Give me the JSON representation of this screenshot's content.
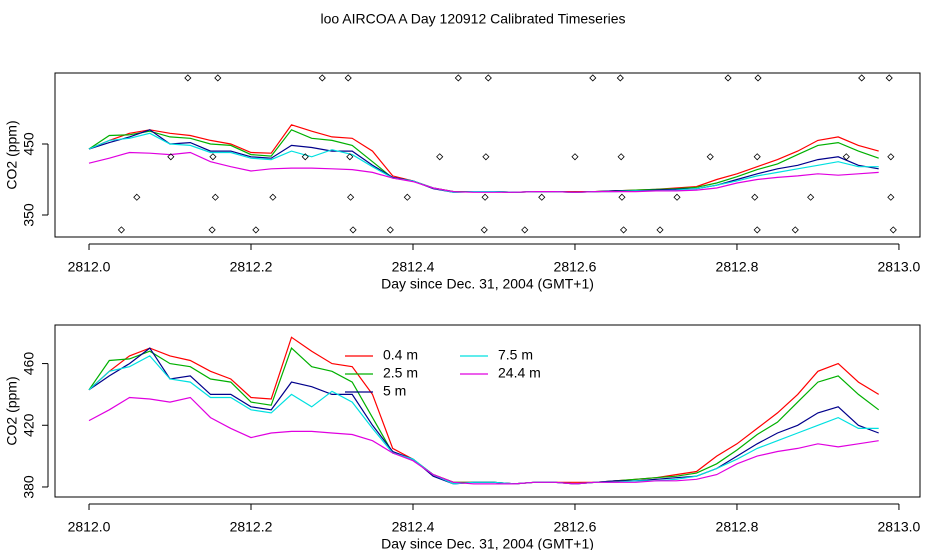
{
  "chart_data": [
    {
      "type": "line",
      "title": "loo AIRCOA A  Day 120912  Calibrated Timeseries",
      "xlabel": "Day since Dec. 31, 2004 (GMT+1)",
      "ylabel": "CO2 (ppm)",
      "xlim": [
        2811.958,
        2813.026
      ],
      "ylim": [
        319,
        550
      ],
      "xticks": [
        {
          "value": 2812,
          "label": "2812.0"
        },
        2812.2,
        2812.4,
        2812.6,
        2812.8,
        {
          "value": 2813,
          "label": "2813.0"
        }
      ],
      "yticks": [
        350,
        450
      ],
      "x": [
        2812.0,
        2812.025,
        2812.05,
        2812.075,
        2812.1,
        2812.125,
        2812.15,
        2812.175,
        2812.2,
        2812.225,
        2812.25,
        2812.275,
        2812.3,
        2812.325,
        2812.35,
        2812.375,
        2812.4,
        2812.425,
        2812.45,
        2812.475,
        2812.5,
        2812.525,
        2812.55,
        2812.575,
        2812.6,
        2812.625,
        2812.65,
        2812.675,
        2812.7,
        2812.725,
        2812.75,
        2812.775,
        2812.8,
        2812.825,
        2812.85,
        2812.875,
        2812.9,
        2812.925,
        2812.95,
        2812.975
      ],
      "series": [
        {
          "color": "#ff0000",
          "values": [
            443,
            455,
            465,
            470,
            465,
            462,
            455,
            450,
            438,
            437,
            477,
            468,
            460,
            458,
            440,
            405,
            398,
            388,
            383,
            383,
            383,
            382,
            383,
            383,
            383,
            383,
            384,
            385,
            386,
            388,
            390,
            400,
            408,
            418,
            428,
            440,
            455,
            460,
            448,
            440
          ]
        },
        {
          "color": "#00b000",
          "values": [
            443,
            462,
            463,
            468,
            460,
            458,
            450,
            448,
            435,
            433,
            470,
            458,
            455,
            448,
            425,
            402,
            398,
            388,
            383,
            383,
            383,
            382,
            383,
            383,
            382,
            383,
            384,
            385,
            386,
            387,
            389,
            395,
            404,
            414,
            422,
            435,
            448,
            452,
            440,
            430
          ]
        },
        {
          "color": "#00008b",
          "values": [
            443,
            452,
            460,
            470,
            450,
            452,
            440,
            440,
            432,
            430,
            448,
            445,
            440,
            440,
            420,
            403,
            398,
            387,
            382,
            383,
            383,
            382,
            383,
            383,
            382,
            383,
            384,
            384,
            385,
            386,
            387,
            392,
            400,
            408,
            415,
            420,
            428,
            432,
            420,
            415
          ]
        },
        {
          "color": "#00e0e0",
          "values": [
            443,
            455,
            458,
            465,
            450,
            448,
            438,
            438,
            430,
            428,
            440,
            432,
            442,
            435,
            418,
            402,
            398,
            388,
            382,
            383,
            383,
            382,
            383,
            383,
            382,
            383,
            383,
            384,
            384,
            385,
            387,
            392,
            398,
            405,
            410,
            415,
            420,
            425,
            418,
            418
          ]
        },
        {
          "color": "#e000e0",
          "values": [
            423,
            430,
            438,
            437,
            435,
            438,
            425,
            418,
            412,
            415,
            416,
            416,
            415,
            414,
            410,
            402,
            397,
            388,
            383,
            382,
            382,
            382,
            383,
            383,
            382,
            383,
            383,
            383,
            384,
            384,
            385,
            388,
            395,
            400,
            403,
            405,
            408,
            406,
            408,
            410
          ]
        }
      ],
      "points": {
        "x": [
          2812.122,
          2812.159,
          2812.288,
          2812.32,
          2812.456,
          2812.493,
          2812.622,
          2812.656,
          2812.789,
          2812.826,
          2812.954,
          2812.988,
          2812.101,
          2812.153,
          2812.267,
          2812.322,
          2812.433,
          2812.49,
          2812.6,
          2812.657,
          2812.767,
          2812.825,
          2812.935,
          2812.99,
          2812.059,
          2812.156,
          2812.227,
          2812.323,
          2812.393,
          2812.489,
          2812.559,
          2812.658,
          2812.726,
          2812.822,
          2812.891,
          2812.99,
          2812.04,
          2812.152,
          2812.206,
          2812.326,
          2812.372,
          2812.488,
          2812.538,
          2812.66,
          2812.705,
          2812.825,
          2812.872,
          2812.993
        ],
        "y": [
          543,
          543,
          543,
          543,
          543,
          543,
          543,
          543,
          543,
          543,
          543,
          543,
          432,
          432,
          432,
          432,
          432,
          432,
          432,
          432,
          432,
          432,
          432,
          432,
          375,
          375,
          375,
          375,
          375,
          375,
          375,
          375,
          375,
          375,
          375,
          375,
          329,
          329,
          329,
          329,
          329,
          329,
          329,
          329,
          329,
          329,
          329,
          329
        ]
      }
    },
    {
      "type": "line",
      "xlabel": "Day since Dec. 31, 2004 (GMT+1)",
      "ylabel": "CO2 (ppm)",
      "xlim": [
        2811.958,
        2813.026
      ],
      "ylim": [
        373.5,
        485
      ],
      "xticks": [
        {
          "value": 2812,
          "label": "2812.0"
        },
        2812.2,
        2812.4,
        2812.6,
        2812.8,
        {
          "value": 2813,
          "label": "2813.0"
        }
      ],
      "yticks": [
        380,
        420,
        460
      ],
      "legend": "top",
      "x": [
        2812.0,
        2812.025,
        2812.05,
        2812.075,
        2812.1,
        2812.125,
        2812.15,
        2812.175,
        2812.2,
        2812.225,
        2812.25,
        2812.275,
        2812.3,
        2812.325,
        2812.35,
        2812.375,
        2812.4,
        2812.425,
        2812.45,
        2812.475,
        2812.5,
        2812.525,
        2812.55,
        2812.575,
        2812.6,
        2812.625,
        2812.65,
        2812.675,
        2812.7,
        2812.725,
        2812.75,
        2812.775,
        2812.8,
        2812.825,
        2812.85,
        2812.875,
        2812.9,
        2812.925,
        2812.95,
        2812.975
      ],
      "series": [
        {
          "name": "0.4 m",
          "color": "#ff0000",
          "values": [
            443,
            455,
            465,
            470,
            465,
            462,
            455,
            450,
            438,
            437,
            477,
            468,
            460,
            458,
            440,
            405,
            398,
            388,
            383,
            383,
            383,
            382,
            383,
            383,
            383,
            383,
            384,
            385,
            386,
            388,
            390,
            400,
            408,
            418,
            428,
            440,
            455,
            460,
            448,
            440
          ]
        },
        {
          "name": "2.5 m",
          "color": "#00b000",
          "values": [
            443,
            462,
            463,
            468,
            460,
            458,
            450,
            448,
            435,
            433,
            470,
            458,
            455,
            448,
            425,
            402,
            398,
            388,
            383,
            383,
            383,
            382,
            383,
            383,
            382,
            383,
            384,
            385,
            386,
            387,
            389,
            395,
            404,
            414,
            422,
            435,
            448,
            452,
            440,
            430
          ]
        },
        {
          "name": "5 m",
          "color": "#00008b",
          "values": [
            443,
            452,
            460,
            470,
            450,
            452,
            440,
            440,
            432,
            430,
            448,
            445,
            440,
            440,
            420,
            403,
            398,
            387,
            382,
            383,
            383,
            382,
            383,
            383,
            382,
            383,
            384,
            384,
            385,
            386,
            387,
            392,
            400,
            408,
            415,
            420,
            428,
            432,
            420,
            415
          ]
        },
        {
          "name": "7.5 m",
          "color": "#00e0e0",
          "values": [
            443,
            455,
            458,
            465,
            450,
            448,
            438,
            438,
            430,
            428,
            440,
            432,
            442,
            435,
            418,
            402,
            398,
            388,
            382,
            383,
            383,
            382,
            383,
            383,
            382,
            383,
            383,
            384,
            384,
            385,
            387,
            392,
            398,
            405,
            410,
            415,
            420,
            425,
            418,
            418
          ]
        },
        {
          "name": "24.4 m",
          "color": "#e000e0",
          "values": [
            423,
            430,
            438,
            437,
            435,
            438,
            425,
            418,
            412,
            415,
            416,
            416,
            415,
            414,
            410,
            402,
            397,
            388,
            383,
            382,
            382,
            382,
            383,
            383,
            382,
            383,
            383,
            383,
            384,
            384,
            385,
            388,
            395,
            400,
            403,
            405,
            408,
            406,
            408,
            410
          ]
        }
      ]
    }
  ]
}
